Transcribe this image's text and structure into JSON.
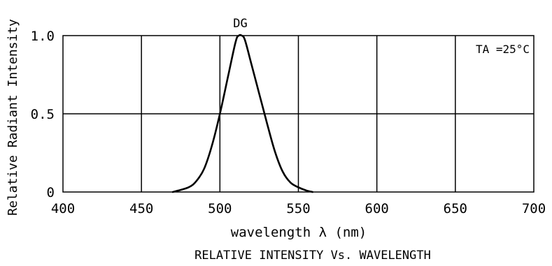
{
  "chart_data": {
    "type": "line",
    "title": "RELATIVE INTENSITY Vs. WAVELENGTH",
    "xlabel": "wavelength λ (nm)",
    "ylabel": "Relative Radiant Intensity",
    "xlim": [
      400,
      700
    ],
    "ylim": [
      0,
      1.0
    ],
    "x_ticks": [
      400,
      450,
      500,
      550,
      600,
      650,
      700
    ],
    "x_tick_labels": [
      "400",
      "450",
      "500",
      "550",
      "600",
      "650",
      "700"
    ],
    "y_ticks": [
      0,
      0.5,
      1.0
    ],
    "y_tick_labels": [
      "0",
      "0.5",
      "1.0"
    ],
    "grid": true,
    "annotation": "TA =25°C",
    "series": [
      {
        "name": "DG",
        "color": "#000000",
        "x": [
          470,
          480,
          485,
          490,
          495,
          500,
          505,
          510,
          512,
          514,
          516,
          520,
          525,
          530,
          535,
          540,
          545,
          550,
          555,
          559
        ],
        "y": [
          0.0,
          0.03,
          0.07,
          0.15,
          0.3,
          0.5,
          0.73,
          0.96,
          1.0,
          1.0,
          0.97,
          0.82,
          0.63,
          0.44,
          0.26,
          0.13,
          0.06,
          0.03,
          0.01,
          0.0
        ]
      }
    ]
  }
}
